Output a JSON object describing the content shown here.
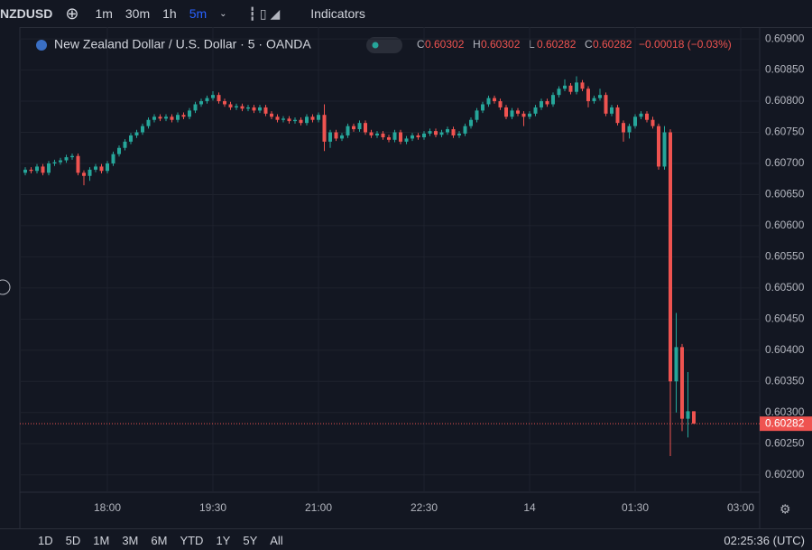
{
  "toolbar": {
    "symbol": "NZDUSD",
    "intervals": [
      "1m",
      "30m",
      "1h",
      "5m"
    ],
    "active_interval": 3,
    "indicators": "Indicators"
  },
  "legend": {
    "title": "New Zealand Dollar / U.S. Dollar · 5 · OANDA",
    "o": "O",
    "h": "H",
    "l": "L",
    "c": "C",
    "change": "−0.00018 (−0.03%)"
  },
  "bottombar": {
    "ranges": [
      "1D",
      "5D",
      "1M",
      "3M",
      "6M",
      "YTD",
      "1Y",
      "5Y",
      "All"
    ],
    "clock": "02:25:36 (UTC)"
  },
  "chart_data": {
    "type": "candlestick",
    "up_color": "#26a69a",
    "down_color": "#ef5350",
    "grid": true,
    "ylim": [
      0.60172,
      0.60919
    ],
    "yticks": [
      {
        "value": 0.609,
        "label": "0.60900"
      },
      {
        "value": 0.6085,
        "label": "0.60850"
      },
      {
        "value": 0.608,
        "label": "0.60800"
      },
      {
        "value": 0.6075,
        "label": "0.60750"
      },
      {
        "value": 0.607,
        "label": "0.60700"
      },
      {
        "value": 0.6065,
        "label": "0.60650"
      },
      {
        "value": 0.606,
        "label": "0.60600"
      },
      {
        "value": 0.6055,
        "label": "0.60550"
      },
      {
        "value": 0.605,
        "label": "0.60500"
      },
      {
        "value": 0.6045,
        "label": "0.60450"
      },
      {
        "value": 0.604,
        "label": "0.60400"
      },
      {
        "value": 0.6035,
        "label": "0.60350"
      },
      {
        "value": 0.603,
        "label": "0.60300"
      },
      {
        "value": 0.6025,
        "label": "0.60250"
      },
      {
        "value": 0.602,
        "label": "0.60200"
      }
    ],
    "xticks": [
      {
        "value": 14,
        "label": "18:00"
      },
      {
        "value": 32,
        "label": "19:30"
      },
      {
        "value": 50,
        "label": "21:00"
      },
      {
        "value": 68,
        "label": "22:30"
      },
      {
        "value": 86,
        "label": "14"
      },
      {
        "value": 104,
        "label": "01:30"
      },
      {
        "value": 122,
        "label": "03:00"
      }
    ],
    "open": [
      0.60685,
      0.6069,
      0.60688,
      0.60695,
      0.60685,
      0.607,
      0.60702,
      0.60705,
      0.6071,
      0.60712,
      0.60685,
      0.6068,
      0.6069,
      0.60695,
      0.60688,
      0.607,
      0.60715,
      0.60725,
      0.60735,
      0.60745,
      0.6075,
      0.6076,
      0.6077,
      0.60775,
      0.60772,
      0.60775,
      0.6077,
      0.60778,
      0.60775,
      0.60785,
      0.60795,
      0.608,
      0.60805,
      0.6081,
      0.608,
      0.60795,
      0.6079,
      0.60792,
      0.60788,
      0.6079,
      0.60785,
      0.6079,
      0.6078,
      0.60775,
      0.6077,
      0.60772,
      0.60768,
      0.6077,
      0.60765,
      0.60775,
      0.6077,
      0.60778,
      0.60735,
      0.6075,
      0.6074,
      0.60745,
      0.6076,
      0.60755,
      0.60765,
      0.6075,
      0.60745,
      0.60748,
      0.60742,
      0.60738,
      0.6075,
      0.60735,
      0.6074,
      0.60745,
      0.60742,
      0.60748,
      0.60752,
      0.60746,
      0.6075,
      0.60755,
      0.60745,
      0.60748,
      0.6076,
      0.6077,
      0.60785,
      0.60795,
      0.60805,
      0.608,
      0.6079,
      0.60775,
      0.60785,
      0.6078,
      0.60775,
      0.6078,
      0.6079,
      0.608,
      0.60795,
      0.6081,
      0.6082,
      0.60825,
      0.60815,
      0.6083,
      0.6082,
      0.608,
      0.60805,
      0.6081,
      0.6078,
      0.6079,
      0.60765,
      0.6075,
      0.6076,
      0.60775,
      0.6078,
      0.6077,
      0.6076,
      0.60695,
      0.6075,
      0.6035,
      0.60405,
      0.6029,
      0.60302
    ],
    "high": [
      0.60694,
      0.60694,
      0.60699,
      0.60699,
      0.60704,
      0.60706,
      0.60709,
      0.60714,
      0.60716,
      0.60716,
      0.60689,
      0.60694,
      0.60699,
      0.60699,
      0.60704,
      0.60719,
      0.60729,
      0.60739,
      0.60749,
      0.60754,
      0.60764,
      0.60774,
      0.60779,
      0.60779,
      0.60779,
      0.60779,
      0.60782,
      0.60782,
      0.60789,
      0.60799,
      0.60804,
      0.60809,
      0.60816,
      0.60814,
      0.60804,
      0.60799,
      0.60796,
      0.60796,
      0.60794,
      0.60794,
      0.60794,
      0.60794,
      0.60784,
      0.60779,
      0.60776,
      0.60776,
      0.60774,
      0.60774,
      0.60779,
      0.60779,
      0.60782,
      0.60795,
      0.60754,
      0.60754,
      0.60749,
      0.60764,
      0.60764,
      0.60769,
      0.60769,
      0.60754,
      0.60752,
      0.60752,
      0.60746,
      0.60754,
      0.60754,
      0.60744,
      0.60749,
      0.60749,
      0.60752,
      0.60756,
      0.60756,
      0.60754,
      0.60759,
      0.60759,
      0.60752,
      0.60764,
      0.60774,
      0.60789,
      0.60799,
      0.60809,
      0.60809,
      0.60804,
      0.60794,
      0.60789,
      0.60789,
      0.60784,
      0.60784,
      0.60794,
      0.60804,
      0.60804,
      0.60814,
      0.60824,
      0.60835,
      0.60829,
      0.6084,
      0.60834,
      0.60824,
      0.60809,
      0.6082,
      0.60814,
      0.60794,
      0.60794,
      0.60769,
      0.60764,
      0.60779,
      0.60784,
      0.60784,
      0.60775,
      0.60764,
      0.6076,
      0.60755,
      0.6046,
      0.6041,
      0.60365,
      0.60302
    ],
    "low": [
      0.60681,
      0.60684,
      0.60684,
      0.60681,
      0.60681,
      0.60696,
      0.60698,
      0.60701,
      0.60706,
      0.60681,
      0.60665,
      0.60672,
      0.60686,
      0.60684,
      0.60684,
      0.60696,
      0.60711,
      0.60721,
      0.60731,
      0.60741,
      0.60746,
      0.60756,
      0.60766,
      0.60768,
      0.60768,
      0.60766,
      0.60766,
      0.60771,
      0.60771,
      0.60781,
      0.60791,
      0.60796,
      0.60801,
      0.60796,
      0.60791,
      0.60786,
      0.60786,
      0.60784,
      0.60784,
      0.60781,
      0.60781,
      0.60776,
      0.60771,
      0.60766,
      0.60766,
      0.60764,
      0.60764,
      0.60761,
      0.60761,
      0.60766,
      0.60766,
      0.6072,
      0.60725,
      0.60736,
      0.60736,
      0.60741,
      0.60751,
      0.60751,
      0.60746,
      0.60741,
      0.60741,
      0.60738,
      0.60734,
      0.60734,
      0.60731,
      0.60731,
      0.60736,
      0.60738,
      0.60738,
      0.60744,
      0.60742,
      0.60742,
      0.60746,
      0.60741,
      0.60741,
      0.60744,
      0.60756,
      0.60766,
      0.60781,
      0.60791,
      0.60796,
      0.60786,
      0.60771,
      0.60771,
      0.60776,
      0.6076,
      0.60771,
      0.60776,
      0.60786,
      0.60791,
      0.60791,
      0.60806,
      0.60816,
      0.60811,
      0.60811,
      0.60816,
      0.6079,
      0.60796,
      0.60801,
      0.60776,
      0.60776,
      0.60761,
      0.60735,
      0.6074,
      0.60756,
      0.60771,
      0.60766,
      0.60756,
      0.6069,
      0.6069,
      0.6023,
      0.603,
      0.6027,
      0.6026,
      0.60282
    ],
    "close": [
      0.6069,
      0.60688,
      0.60695,
      0.60685,
      0.607,
      0.60702,
      0.60705,
      0.6071,
      0.60712,
      0.60685,
      0.6068,
      0.6069,
      0.60695,
      0.60688,
      0.607,
      0.60715,
      0.60725,
      0.60735,
      0.60745,
      0.6075,
      0.6076,
      0.6077,
      0.60775,
      0.60772,
      0.60775,
      0.6077,
      0.60778,
      0.60775,
      0.60785,
      0.60795,
      0.608,
      0.60805,
      0.6081,
      0.608,
      0.60795,
      0.6079,
      0.60792,
      0.60788,
      0.6079,
      0.60785,
      0.6079,
      0.6078,
      0.60775,
      0.6077,
      0.60772,
      0.60768,
      0.6077,
      0.60765,
      0.60775,
      0.6077,
      0.60778,
      0.60735,
      0.6075,
      0.6074,
      0.60745,
      0.6076,
      0.60755,
      0.60765,
      0.6075,
      0.60745,
      0.60748,
      0.60742,
      0.60738,
      0.6075,
      0.60735,
      0.6074,
      0.60745,
      0.60742,
      0.60748,
      0.60752,
      0.60746,
      0.6075,
      0.60755,
      0.60745,
      0.60748,
      0.6076,
      0.6077,
      0.60785,
      0.60795,
      0.60805,
      0.608,
      0.6079,
      0.60775,
      0.60785,
      0.6078,
      0.60775,
      0.6078,
      0.6079,
      0.608,
      0.60795,
      0.6081,
      0.6082,
      0.60825,
      0.60815,
      0.6083,
      0.6082,
      0.608,
      0.60805,
      0.6081,
      0.6078,
      0.6079,
      0.60765,
      0.6075,
      0.6076,
      0.60775,
      0.6078,
      0.6077,
      0.6076,
      0.60695,
      0.6075,
      0.6035,
      0.60405,
      0.6029,
      0.60302,
      0.60282
    ]
  }
}
